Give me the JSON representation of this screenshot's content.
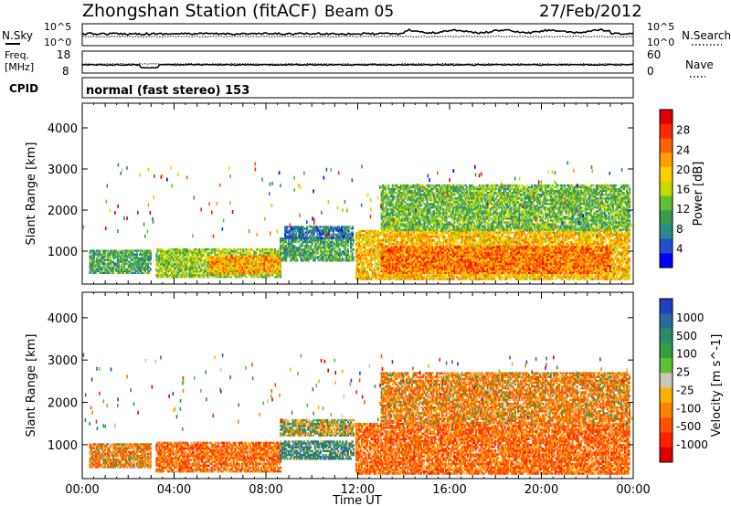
{
  "header": {
    "station": "Zhongshan Station (fitACF)",
    "beam": "Beam 05",
    "date": "27/Feb/2012"
  },
  "top_panels": {
    "nsky_label": "N.Sky",
    "nsky_left_top": "10^5",
    "nsky_left_bottom": "10^0",
    "nsearch_label": "N.Search",
    "nsearch_right_top": "10^5",
    "nsearch_right_bottom": "10^0",
    "freq_label_1": "Freq.",
    "freq_label_2": "[MHz]",
    "freq_top": "18",
    "freq_bottom": "8",
    "nave_label": "Nave",
    "nave_top": "60",
    "nave_bottom": "0",
    "cpid_label": "CPID",
    "cpid_text": "normal (fast stereo) 153"
  },
  "chart_data": [
    {
      "type": "heatmap",
      "title": "",
      "xlabel": "",
      "ylabel": "Slant Range [km]",
      "x_ticks": [
        "00:00",
        "04:00",
        "08:00",
        "12:00",
        "16:00",
        "20:00",
        "00:00"
      ],
      "y_ticks": [
        1000,
        2000,
        3000,
        4000
      ],
      "ylim": [
        200,
        4600
      ],
      "xlim_hours": [
        0,
        24
      ],
      "colorbar": {
        "label": "Power [dB]",
        "ticks": [
          4,
          8,
          12,
          16,
          20,
          24,
          28
        ],
        "range": [
          0,
          32
        ],
        "colors": [
          "#0000ff",
          "#2050c8",
          "#2a8a8a",
          "#3a9a50",
          "#60c030",
          "#c8d800",
          "#ffd000",
          "#ffa000",
          "#ff6000",
          "#ff2800",
          "#e00000"
        ]
      },
      "echo_regions": [
        {
          "t0": 0.3,
          "t1": 3.0,
          "r0": 450,
          "r1": 1000,
          "level": 10
        },
        {
          "t0": 3.2,
          "t1": 8.6,
          "r0": 350,
          "r1": 1050,
          "level": 14
        },
        {
          "t0": 5.5,
          "t1": 8.6,
          "r0": 450,
          "r1": 900,
          "level": 22
        },
        {
          "t0": 8.6,
          "t1": 11.8,
          "r0": 750,
          "r1": 1300,
          "level": 10
        },
        {
          "t0": 8.8,
          "t1": 11.8,
          "r0": 1300,
          "r1": 1600,
          "level": 6
        },
        {
          "t0": 11.9,
          "t1": 23.8,
          "r0": 300,
          "r1": 1500,
          "level": 20
        },
        {
          "t0": 13.0,
          "t1": 23.0,
          "r0": 450,
          "r1": 1100,
          "level": 25
        },
        {
          "t0": 13.0,
          "t1": 23.8,
          "r0": 1500,
          "r1": 2600,
          "level": 12
        }
      ]
    },
    {
      "type": "heatmap",
      "title": "",
      "xlabel": "Time UT",
      "ylabel": "Slant Range [km]",
      "x_ticks": [
        "00:00",
        "04:00",
        "08:00",
        "12:00",
        "16:00",
        "20:00",
        "00:00"
      ],
      "y_ticks": [
        1000,
        2000,
        3000,
        4000
      ],
      "ylim": [
        200,
        4600
      ],
      "xlim_hours": [
        0,
        24
      ],
      "colorbar": {
        "label": "Velocity [m s^-1]",
        "ticks": [
          1000,
          500,
          100,
          25,
          -25,
          -100,
          -500,
          -1000
        ],
        "colors": [
          "#2040c0",
          "#2a6a9a",
          "#2a8a6a",
          "#30a040",
          "#60c030",
          "#c8c8b8",
          "#ffb000",
          "#ff8000",
          "#ff5000",
          "#ff2000",
          "#e00000"
        ]
      },
      "echo_regions": [
        {
          "t0": 0.3,
          "t1": 3.0,
          "r0": 450,
          "r1": 1000,
          "level": -200
        },
        {
          "t0": 3.2,
          "t1": 8.6,
          "r0": 350,
          "r1": 1050,
          "level": -300
        },
        {
          "t0": 8.6,
          "t1": 11.8,
          "r0": 1200,
          "r1": 1600,
          "level": 0
        },
        {
          "t0": 8.6,
          "t1": 11.8,
          "r0": 650,
          "r1": 1100,
          "level": 200
        },
        {
          "t0": 11.9,
          "t1": 23.8,
          "r0": 300,
          "r1": 1500,
          "level": -300
        },
        {
          "t0": 13.0,
          "t1": 23.8,
          "r0": 1500,
          "r1": 2700,
          "level": -200
        }
      ]
    }
  ]
}
